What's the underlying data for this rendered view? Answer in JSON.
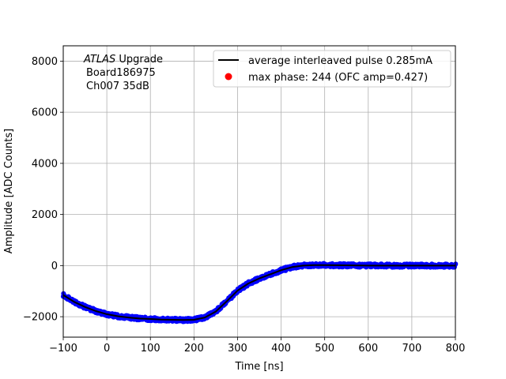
{
  "chart_data": {
    "type": "scatter",
    "title": "",
    "xlabel": "Time [ns]",
    "ylabel": "Amplitude [ADC Counts]",
    "xlim": [
      -100,
      800
    ],
    "ylim": [
      -2800,
      8600
    ],
    "x_ticks": [
      -100,
      0,
      100,
      200,
      300,
      400,
      500,
      600,
      700,
      800
    ],
    "y_ticks": [
      -2000,
      0,
      2000,
      4000,
      6000,
      8000
    ],
    "grid": true,
    "legend_position": "top-right",
    "annotation": {
      "line1_italic": "ATLAS",
      "line1_rest": " Upgrade",
      "line2": "Board186975",
      "line3": "Ch007 35dB"
    },
    "series": [
      {
        "name": "average interleaved pulse 0.285mA",
        "kind": "line",
        "color": "#000000",
        "x": [
          -100,
          -75,
          -50,
          -25,
          0,
          25,
          50,
          75,
          100,
          125,
          150,
          175,
          200,
          225,
          250,
          275,
          300,
          325,
          350,
          375,
          400,
          425,
          450,
          475,
          500,
          550,
          600,
          650,
          700,
          750,
          800
        ],
        "y": [
          -1150,
          -1420,
          -1620,
          -1780,
          -1900,
          -1980,
          -2030,
          -2070,
          -2090,
          -2110,
          -2120,
          -2130,
          -2120,
          -2030,
          -1800,
          -1400,
          -980,
          -700,
          -500,
          -340,
          -180,
          -60,
          0,
          20,
          20,
          10,
          0,
          0,
          0,
          0,
          0
        ]
      },
      {
        "name": "max phase: 244 (OFC amp=0.427)",
        "kind": "marker",
        "color": "#ff0000",
        "x": [],
        "y": []
      },
      {
        "name": "",
        "kind": "scatter",
        "color": "#0000ff",
        "x": [
          -100,
          -75,
          -50,
          -25,
          0,
          25,
          50,
          75,
          100,
          125,
          150,
          175,
          200,
          225,
          250,
          275,
          300,
          325,
          350,
          375,
          400,
          425,
          450,
          475,
          500,
          550,
          600,
          650,
          700,
          750,
          800
        ],
        "y": [
          -1150,
          -1420,
          -1620,
          -1780,
          -1900,
          -1980,
          -2030,
          -2070,
          -2090,
          -2110,
          -2120,
          -2130,
          -2120,
          -2030,
          -1800,
          -1400,
          -980,
          -700,
          -500,
          -340,
          -180,
          -60,
          0,
          20,
          20,
          10,
          0,
          0,
          0,
          0,
          0
        ]
      }
    ]
  }
}
